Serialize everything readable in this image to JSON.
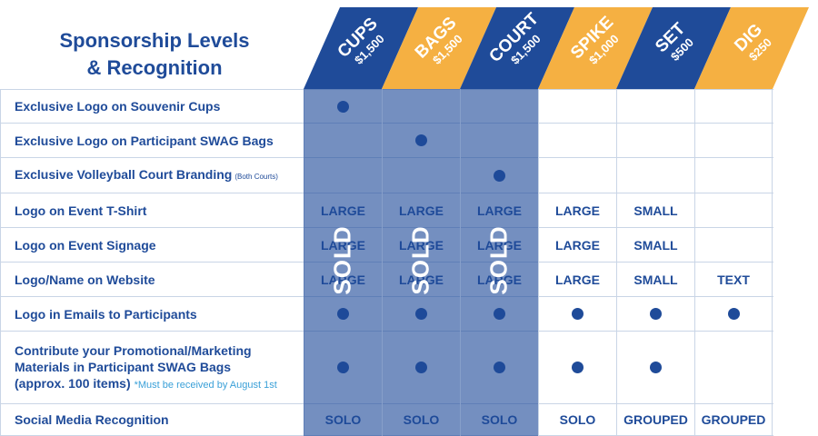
{
  "title": {
    "line1": "Sponsorship Levels",
    "line2": "& Recognition"
  },
  "colors": {
    "navy": "#1f4b99",
    "gold": "#f5b042",
    "light_blue_note": "#3aa0d8"
  },
  "tiers": [
    {
      "name": "CUPS",
      "price": "$1,500",
      "color": "navy"
    },
    {
      "name": "BAGS",
      "price": "$1,500",
      "color": "gold"
    },
    {
      "name": "COURT",
      "price": "$1,500",
      "color": "navy"
    },
    {
      "name": "SPIKE",
      "price": "$1,000",
      "color": "gold"
    },
    {
      "name": "SET",
      "price": "$500",
      "color": "navy"
    },
    {
      "name": "DIG",
      "price": "$250",
      "color": "gold"
    }
  ],
  "sold_label": "SOLD",
  "rows": [
    {
      "label": "Exclusive Logo on Souvenir Cups",
      "cells": [
        "dot",
        "",
        "",
        "",
        "",
        ""
      ]
    },
    {
      "label": "Exclusive Logo on Participant SWAG Bags",
      "cells": [
        "",
        "dot",
        "",
        "",
        "",
        ""
      ]
    },
    {
      "label": "Exclusive Volleyball Court Branding",
      "note_small": "(Both Courts)",
      "cells": [
        "",
        "",
        "dot",
        "",
        "",
        ""
      ]
    },
    {
      "label": "Logo on Event T-Shirt",
      "cells": [
        "LARGE",
        "LARGE",
        "LARGE",
        "LARGE",
        "SMALL",
        ""
      ]
    },
    {
      "label": "Logo on Event Signage",
      "cells": [
        "LARGE",
        "LARGE",
        "LARGE",
        "LARGE",
        "SMALL",
        ""
      ]
    },
    {
      "label": "Logo/Name on Website",
      "cells": [
        "LARGE",
        "LARGE",
        "LARGE",
        "LARGE",
        "SMALL",
        "TEXT"
      ]
    },
    {
      "label": "Logo in Emails to Participants",
      "cells": [
        "dot",
        "dot",
        "dot",
        "dot",
        "dot",
        "dot"
      ]
    },
    {
      "label_lines": [
        "Contribute your Promotional/Marketing",
        "Materials in Participant SWAG Bags",
        "(approx. 100 items)"
      ],
      "note_blue": "*Must be received by August 1st",
      "cells": [
        "dot",
        "dot",
        "dot",
        "dot",
        "dot",
        ""
      ]
    },
    {
      "label": "Social Media Recognition",
      "cells": [
        "SOLO",
        "SOLO",
        "SOLO",
        "SOLO",
        "GROUPED",
        "GROUPED"
      ]
    }
  ]
}
